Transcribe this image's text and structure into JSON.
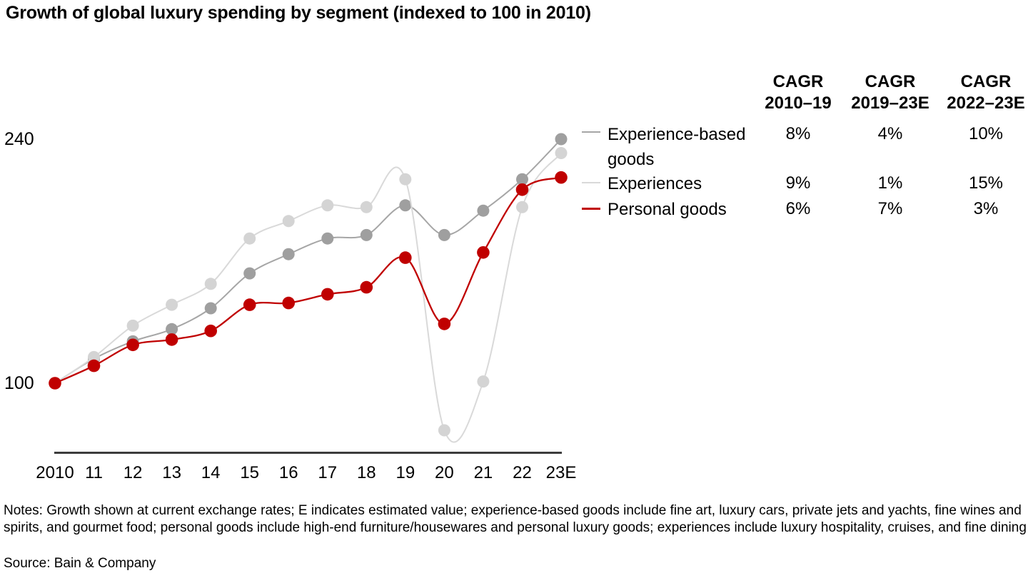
{
  "title": "Growth of global luxury spending by segment (indexed to 100 in 2010)",
  "chart_data": {
    "type": "line",
    "title": "Growth of global luxury spending by segment (indexed to 100 in 2010)",
    "x": [
      "2010",
      "11",
      "12",
      "13",
      "14",
      "15",
      "16",
      "17",
      "18",
      "19",
      "20",
      "21",
      "22",
      "23E"
    ],
    "xlabel": "",
    "ylabel": "",
    "index_base": 100,
    "yticks": [
      100,
      240
    ],
    "ylim": [
      60,
      265
    ],
    "grid": false,
    "smoothing": "catmull-rom",
    "legend_position": "right-table",
    "series": [
      {
        "name": "Experience-based goods",
        "color": "#a6a6a6",
        "marker_color": "#9f9f9f",
        "values": [
          100,
          114,
          124,
          131,
          143,
          163,
          174,
          183,
          185,
          202,
          185,
          199,
          217,
          240
        ],
        "cagr_2010_19": "8%",
        "cagr_2019_23e": "4%",
        "cagr_2022_23e": "10%"
      },
      {
        "name": "Experiences",
        "color": "#d9d9d9",
        "marker_color": "#d4d4d4",
        "values": [
          100,
          115,
          133,
          145,
          157,
          183,
          193,
          202,
          201,
          217,
          73,
          101,
          201,
          232
        ],
        "cagr_2010_19": "9%",
        "cagr_2019_23e": "1%",
        "cagr_2022_23e": "15%"
      },
      {
        "name": "Personal goods",
        "color": "#c00000",
        "marker_color": "#c00000",
        "values": [
          100,
          110,
          122,
          125,
          130,
          145,
          146,
          151,
          155,
          172,
          134,
          175,
          211,
          218
        ],
        "cagr_2010_19": "6%",
        "cagr_2019_23e": "7%",
        "cagr_2022_23e": "3%"
      }
    ]
  },
  "legend_table": {
    "columns": [
      {
        "line1": "CAGR",
        "line2": "2010–19"
      },
      {
        "line1": "CAGR",
        "line2": "2019–23E"
      },
      {
        "line1": "CAGR",
        "line2": "2022–23E"
      }
    ],
    "rows": [
      {
        "label": "Experience-based goods",
        "values": [
          "8%",
          "4%",
          "10%"
        ]
      },
      {
        "label": "Experiences",
        "values": [
          "9%",
          "1%",
          "15%"
        ]
      },
      {
        "label": "Personal goods",
        "values": [
          "6%",
          "7%",
          "3%"
        ]
      }
    ]
  },
  "notes": "Notes: Growth shown at current exchange rates; E indicates estimated value; experience-based goods include fine art, luxury cars, private jets and yachts, fine wines and spirits, and gourmet food; personal goods include high-end furniture/housewares and personal luxury goods; experiences include luxury hospitality, cruises, and fine dining",
  "source": "Source: Bain & Company",
  "colors": {
    "axis": "#3c3c3c",
    "text": "#000000",
    "background": "#ffffff"
  }
}
